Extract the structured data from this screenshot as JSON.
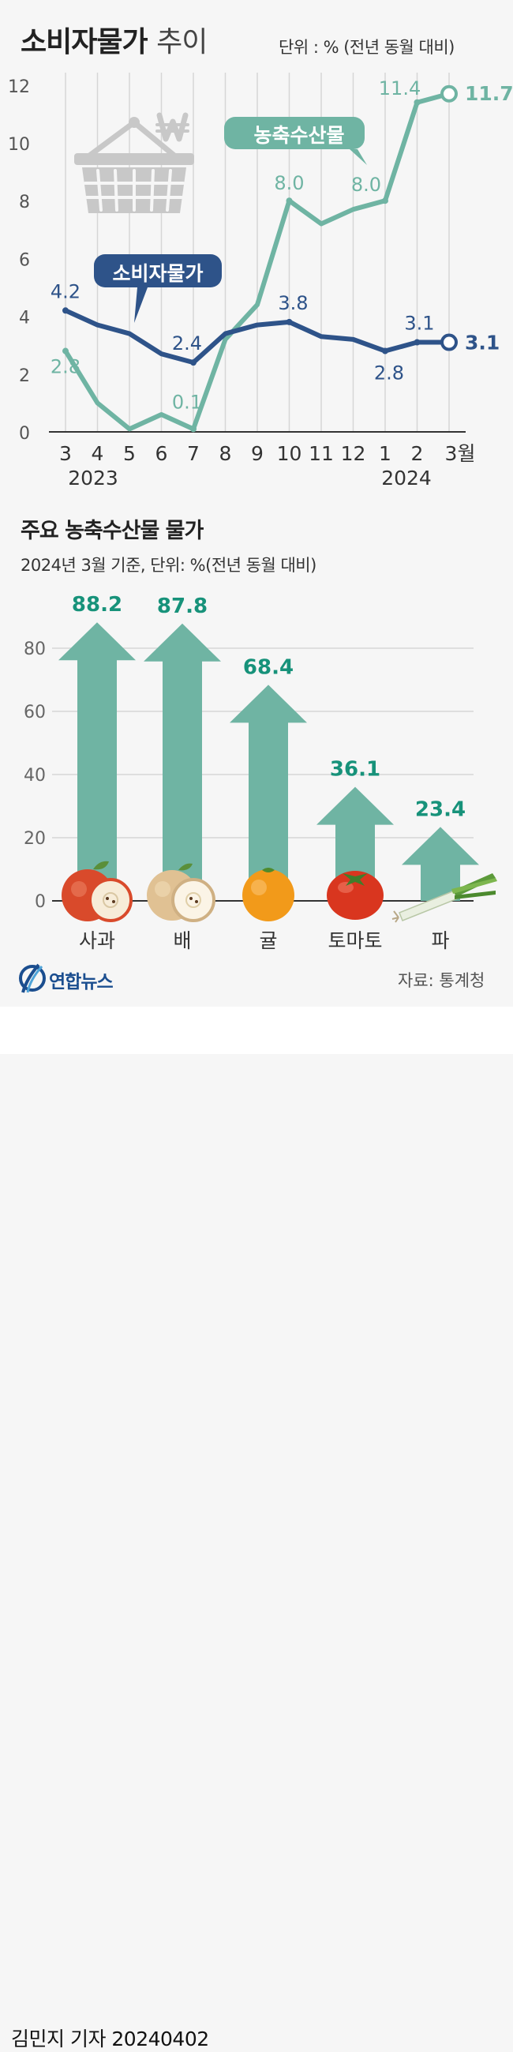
{
  "title": {
    "main": "소비자물가",
    "sub": "추이"
  },
  "unit_note": "단위 : % (전년 동월 대비)",
  "line_chart": {
    "x_labels": [
      "3",
      "4",
      "5",
      "6",
      "7",
      "8",
      "9",
      "10",
      "11",
      "12",
      "1",
      "2",
      "3월"
    ],
    "years": [
      "2023",
      "2024"
    ],
    "y_ticks": [
      "0",
      "2",
      "4",
      "6",
      "8",
      "10",
      "12"
    ],
    "callouts": {
      "agri": "농축수산물",
      "cpi": "소비자물가"
    }
  },
  "bar_section": {
    "title": "주요 농축수산물 물가",
    "subtitle": "2024년 3월 기준, 단위: %(전년 동월 대비)",
    "y_ticks": [
      "0",
      "20",
      "40",
      "60",
      "80"
    ]
  },
  "chart_data": [
    {
      "type": "line",
      "x": [
        "3",
        "4",
        "5",
        "6",
        "7",
        "8",
        "9",
        "10",
        "11",
        "12",
        "1",
        "2",
        "3월"
      ],
      "ylim": [
        0,
        12
      ],
      "grid": true,
      "series": [
        {
          "name": "농축수산물",
          "color": "#6fb4a3",
          "values": [
            2.8,
            1.0,
            0.1,
            0.6,
            0.1,
            3.2,
            4.4,
            8.0,
            7.2,
            7.7,
            8.0,
            11.4,
            11.7
          ],
          "labels": {
            "0": "2.8",
            "4": "0.1",
            "7": "8.0",
            "10": "8.0",
            "11": "11.4",
            "12": "11.7"
          }
        },
        {
          "name": "소비자물가",
          "color": "#2e5389",
          "values": [
            4.2,
            3.7,
            3.4,
            2.7,
            2.4,
            3.4,
            3.7,
            3.8,
            3.3,
            3.2,
            2.8,
            3.1,
            3.1
          ],
          "labels": {
            "0": "4.2",
            "4": "2.4",
            "7": "3.8",
            "10": "2.8",
            "11": "3.1",
            "12": "3.1"
          }
        }
      ]
    },
    {
      "type": "bar",
      "categories": [
        "사과",
        "배",
        "귤",
        "토마토",
        "파"
      ],
      "values": [
        88.2,
        87.8,
        68.4,
        36.1,
        23.4
      ],
      "labels": [
        "88.2",
        "87.8",
        "68.4",
        "36.1",
        "23.4"
      ],
      "ylim": [
        0,
        90
      ],
      "color": "#6fb4a3",
      "label_color": "#17927a"
    }
  ],
  "source": "자료: 통계청",
  "logo_text": "연합뉴스",
  "byline": "김민지 기자  20240402"
}
